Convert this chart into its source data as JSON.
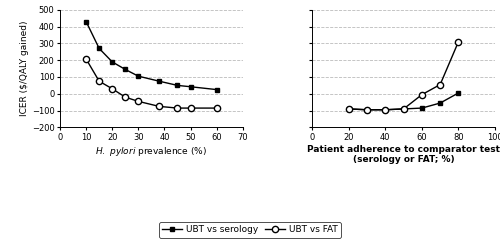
{
  "left_panel": {
    "xlim": [
      0,
      70
    ],
    "xticks": [
      0,
      10,
      20,
      30,
      40,
      50,
      60,
      70
    ],
    "ylim": [
      -200,
      500
    ],
    "yticks": [
      -200,
      -100,
      0,
      100,
      200,
      300,
      400,
      500
    ],
    "serology_x": [
      10,
      15,
      20,
      25,
      30,
      38,
      45,
      50,
      60
    ],
    "serology_y": [
      430,
      270,
      190,
      145,
      105,
      75,
      50,
      42,
      25
    ],
    "fat_x": [
      10,
      15,
      20,
      25,
      30,
      38,
      45,
      50,
      60
    ],
    "fat_y": [
      207,
      75,
      30,
      -20,
      -45,
      -75,
      -85,
      -85,
      -85
    ]
  },
  "right_panel": {
    "xlabel_line1": "Patient adherence to comparator test",
    "xlabel_line2": "(serology or FAT; %)",
    "xlim": [
      0,
      100
    ],
    "xticks": [
      0,
      20,
      40,
      60,
      80,
      100
    ],
    "ylim": [
      -200,
      500
    ],
    "yticks": [
      -200,
      -100,
      0,
      100,
      200,
      300,
      400,
      500
    ],
    "serology_x": [
      20,
      30,
      40,
      50,
      60,
      70,
      80
    ],
    "serology_y": [
      -90,
      -95,
      -95,
      -90,
      -85,
      -55,
      5
    ],
    "fat_x": [
      20,
      30,
      40,
      50,
      60,
      70,
      80
    ],
    "fat_y": [
      -90,
      -95,
      -95,
      -90,
      -5,
      55,
      310
    ]
  },
  "ylabel": "ICER ($/QALY gained)",
  "legend_serology": "UBT vs serology",
  "legend_fat": "UBT vs FAT",
  "background_color": "#ffffff",
  "grid_color": "#bbbbbb",
  "tick_fontsize": 6,
  "label_fontsize": 6.5,
  "legend_fontsize": 6.5
}
